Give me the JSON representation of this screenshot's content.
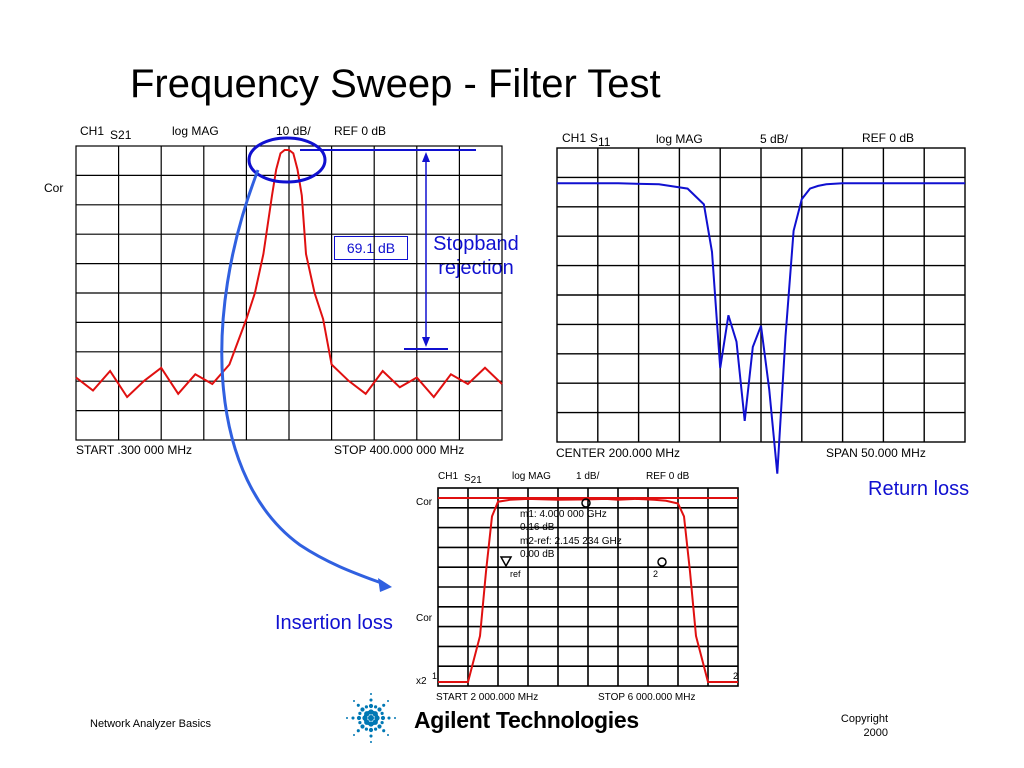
{
  "title": "Frequency Sweep - Filter Test",
  "chart_data": [
    {
      "type": "line",
      "header": {
        "channel": "CH1",
        "param": "S",
        "param_sub": "21",
        "format": "log MAG",
        "scale": "10 dB/",
        "ref": "REF  0 dB"
      },
      "side_label": "Cor",
      "start_label": "START   .300 000 MHz",
      "stop_label": "STOP  400.000 000 MHz",
      "x": [
        0,
        4,
        8,
        12,
        16,
        20,
        24,
        28,
        32,
        36,
        40,
        42,
        44,
        46,
        47,
        48,
        49,
        50,
        51,
        52,
        53,
        54,
        56,
        58,
        60,
        64,
        68,
        72,
        76,
        80,
        84,
        88,
        92,
        96,
        100
      ],
      "y": [
        -70,
        -74,
        -68,
        -76,
        -71,
        -67,
        -75,
        -69,
        -72,
        -66,
        -52,
        -44,
        -32,
        -14,
        -6,
        -1,
        0,
        0,
        -1,
        -6,
        -14,
        -32,
        -44,
        -52,
        -66,
        -71,
        -75,
        -68,
        -73,
        -70,
        -76,
        -69,
        -72,
        -67,
        -72
      ],
      "ylim": [
        -80,
        0
      ],
      "annotations": {
        "rejection_value": "69.1 dB",
        "rejection_label": "Stopband rejection"
      }
    },
    {
      "type": "line",
      "header": {
        "channel": "CH1",
        "param": "S",
        "param_sub": "11",
        "format": "log MAG",
        "scale": "5 dB/",
        "ref": "REF  0 dB"
      },
      "center_label": "CENTER  200.000 MHz",
      "span_label": "SPAN   50.000 MHz",
      "x": [
        0,
        15,
        25,
        32,
        36,
        38,
        40,
        42,
        44,
        46,
        48,
        50,
        52,
        54,
        56,
        58,
        60,
        62,
        64,
        66,
        70,
        75,
        85,
        100
      ],
      "y": [
        -1,
        -1,
        -1.2,
        -2,
        -5,
        -14,
        -36,
        -26,
        -31,
        -46,
        -32,
        -28,
        -40,
        -56,
        -30,
        -10,
        -4,
        -2,
        -1.5,
        -1.2,
        -1,
        -1,
        -1,
        -1
      ],
      "ylim": [
        -50,
        0
      ],
      "annotations": {
        "label": "Return loss"
      }
    },
    {
      "type": "line",
      "header": {
        "channel": "CH1",
        "param": "S",
        "param_sub": "21",
        "format": "log MAG",
        "scale": "1 dB/",
        "ref": "REF  0 dB"
      },
      "side_labels": [
        "Cor",
        "Cor",
        "x2"
      ],
      "start_label": "START 2 000.000 MHz",
      "stop_label": "STOP 6 000.000 MHz",
      "markers": {
        "m1": "m1:        4.000 000 GHz",
        "m1_val": "0.16 dB",
        "m2": "m2-ref: 2.145 234 GHz",
        "m2_val": "0.00 dB",
        "ref": "ref",
        "num1": "1",
        "num2": "2"
      },
      "x": [
        0,
        10,
        14,
        16,
        18,
        20,
        24,
        30,
        40,
        50,
        56,
        60,
        66,
        72,
        76,
        80,
        82,
        84,
        86,
        90,
        100
      ],
      "y": [
        -20,
        -20,
        -15,
        -8,
        -2,
        -0.4,
        -0.2,
        -0.1,
        -0.2,
        -0.15,
        -0.1,
        -0.2,
        -0.1,
        -0.2,
        -0.3,
        -0.6,
        -2,
        -8,
        -15,
        -20,
        -20
      ],
      "ylim": [
        -20,
        0
      ],
      "annotations": {
        "label": "Insertion loss"
      }
    }
  ],
  "footer": {
    "left": "Network Analyzer Basics",
    "brand": "Agilent Technologies",
    "copyright_line1": "Copyright",
    "copyright_line2": "2000"
  },
  "colors": {
    "trace": "#e01010",
    "annotation": "#1010d0",
    "grid": "#000000"
  }
}
